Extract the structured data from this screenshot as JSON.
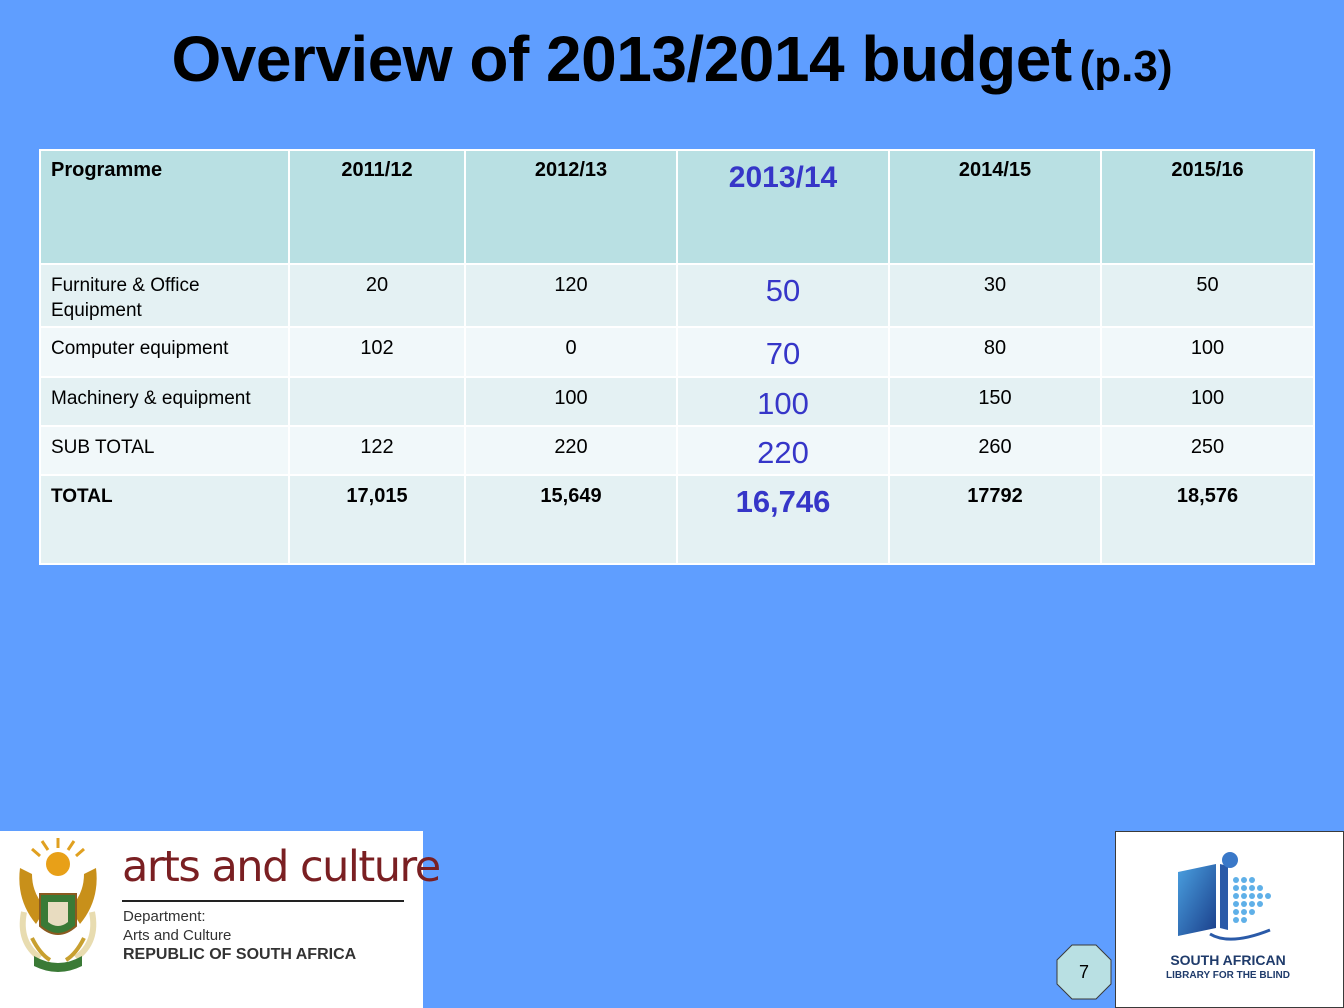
{
  "title": {
    "main": "Overview of 2013/2014 budget",
    "sub": "(p.3)"
  },
  "table": {
    "headers": [
      "Programme",
      "2011/12",
      "2012/13",
      "2013/14",
      "2014/15",
      "2015/16"
    ],
    "rows": [
      {
        "label": "Furniture & Office Equipment",
        "values": [
          "20",
          "120",
          "50",
          "30",
          "50"
        ]
      },
      {
        "label": "Computer equipment",
        "values": [
          "102",
          "0",
          "70",
          "80",
          "100"
        ]
      },
      {
        "label": "Machinery & equipment",
        "values": [
          "",
          "100",
          "100",
          "150",
          "100"
        ]
      },
      {
        "label": "SUB TOTAL",
        "values": [
          "122",
          "220",
          "220",
          "260",
          "250"
        ]
      },
      {
        "label": "TOTAL",
        "values": [
          "17,015",
          "15,649",
          "16,746",
          "17792",
          "18,576"
        ]
      }
    ]
  },
  "logo_left": {
    "name": "arts and culture",
    "dept_line1": "Department:",
    "dept_line2": "Arts and Culture",
    "dept_line3": "REPUBLIC OF SOUTH AFRICA"
  },
  "logo_right": {
    "line1": "SOUTH AFRICAN",
    "line2": "LIBRARY FOR THE BLIND"
  },
  "page_number": "7",
  "colors": {
    "background": "#5f9eff",
    "header_cell": "#b9e0e3",
    "highlight_text": "#3636c8"
  }
}
